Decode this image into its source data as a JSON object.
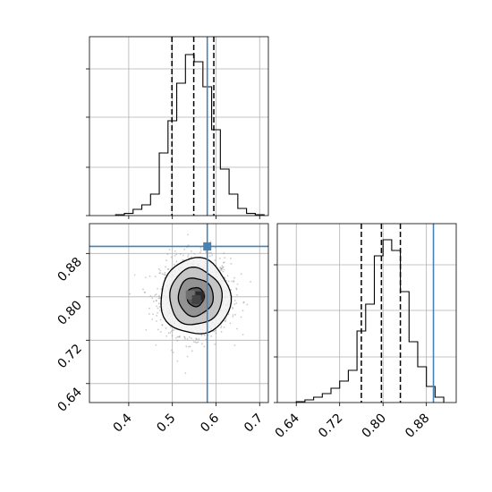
{
  "chart_data": {
    "type": "corner",
    "parameters": 2,
    "colors": {
      "truth": "#4682b4",
      "hist": "#000000",
      "quantile": "#000000",
      "grid": "#b0b0b0",
      "contour_fill_dark": "#2b2b2b",
      "contour_fill_light": "#dcdcdc",
      "samples": "#8c8c8c"
    },
    "panels": [
      {
        "id": "hist-param1",
        "type": "histogram",
        "xlim": [
          0.31,
          0.72
        ],
        "ylim": [
          0,
          1.0
        ],
        "xticks": [
          0.4,
          0.5,
          0.6,
          0.7
        ],
        "y_tick_fractions": [
          0,
          0.27,
          0.55,
          0.82
        ],
        "bin_edges": [
          0.37,
          0.39,
          0.41,
          0.43,
          0.45,
          0.47,
          0.49,
          0.51,
          0.53,
          0.55,
          0.57,
          0.59,
          0.61,
          0.63,
          0.65,
          0.67,
          0.69,
          0.71
        ],
        "counts": [
          0.005,
          0.012,
          0.035,
          0.06,
          0.12,
          0.35,
          0.53,
          0.74,
          0.9,
          0.86,
          0.72,
          0.48,
          0.26,
          0.12,
          0.04,
          0.012,
          0.005
        ],
        "quantiles": [
          0.499,
          0.549,
          0.595
        ],
        "truth": 0.58
      },
      {
        "id": "hist-param2",
        "type": "histogram",
        "xlim": [
          0.605,
          0.935
        ],
        "ylim": [
          0,
          1.0
        ],
        "xticks": [
          0.64,
          0.72,
          0.8,
          0.88
        ],
        "xtick_labels": [
          "0.64",
          "0.72",
          "0.80",
          "0.88"
        ],
        "y_tick_fractions": [
          0,
          0.255,
          0.515,
          0.77
        ],
        "bin_edges": [
          0.64,
          0.656,
          0.672,
          0.688,
          0.704,
          0.72,
          0.736,
          0.752,
          0.768,
          0.784,
          0.8,
          0.816,
          0.832,
          0.848,
          0.864,
          0.88,
          0.896,
          0.912
        ],
        "counts": [
          0.005,
          0.015,
          0.03,
          0.05,
          0.08,
          0.12,
          0.18,
          0.4,
          0.55,
          0.82,
          0.91,
          0.85,
          0.62,
          0.34,
          0.2,
          0.09,
          0.03
        ],
        "quantiles": [
          0.76,
          0.797,
          0.832
        ],
        "truth": 0.893
      },
      {
        "id": "joint-param1-param2",
        "type": "2d-density",
        "xlim": [
          0.31,
          0.72
        ],
        "ylim": [
          0.605,
          0.935
        ],
        "xticks": [
          0.4,
          0.5,
          0.6,
          0.7
        ],
        "xtick_labels": [
          "0.4",
          "0.5",
          "0.6",
          "0.7"
        ],
        "yticks": [
          0.64,
          0.72,
          0.8,
          0.88
        ],
        "ytick_labels": [
          "0.64",
          "0.72",
          "0.80",
          "0.88"
        ],
        "density_center": [
          0.553,
          0.8
        ],
        "density_spread": [
          0.04,
          0.035
        ],
        "contour_levels_sigma": [
          0.5,
          1.0,
          1.5,
          2.0
        ],
        "truth": [
          0.58,
          0.893
        ]
      }
    ]
  }
}
